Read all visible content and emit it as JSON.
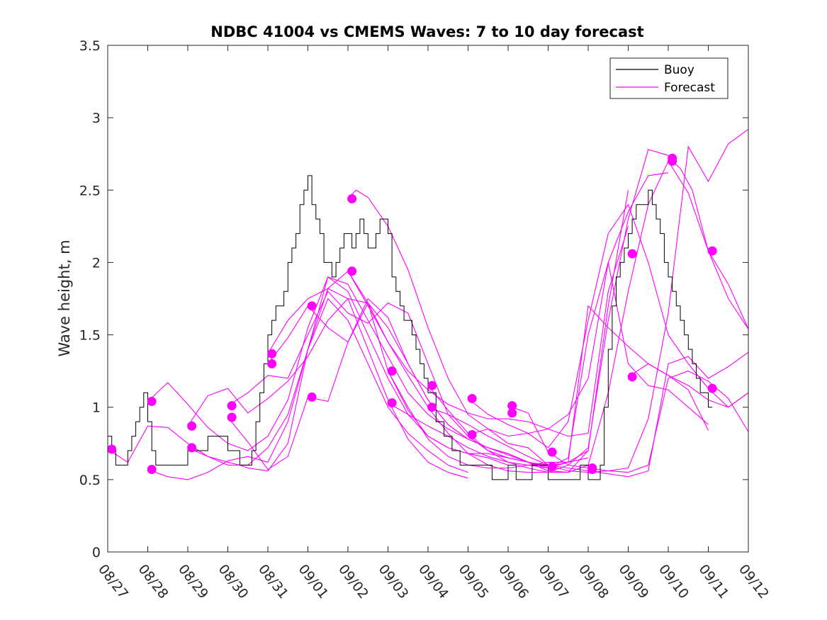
{
  "chart_data": {
    "type": "line",
    "title": "NDBC 41004 vs CMEMS Waves: 7 to 10 day forecast",
    "xlabel": "",
    "ylabel": "Wave height, m",
    "xlim": [
      0,
      16
    ],
    "ylim": [
      0,
      3.5
    ],
    "x_ticks": [
      0,
      1,
      2,
      3,
      4,
      5,
      6,
      7,
      8,
      9,
      10,
      11,
      12,
      13,
      14,
      15,
      16
    ],
    "x_tick_labels": [
      "08/27",
      "08/28",
      "08/29",
      "08/30",
      "08/31",
      "09/01",
      "09/02",
      "09/03",
      "09/04",
      "09/05",
      "09/06",
      "09/07",
      "09/08",
      "09/09",
      "09/10",
      "09/11",
      "09/12"
    ],
    "y_ticks": [
      0,
      0.5,
      1,
      1.5,
      2,
      2.5,
      3,
      3.5
    ],
    "y_tick_labels": [
      "0",
      "0.5",
      "1",
      "1.5",
      "2",
      "2.5",
      "3",
      "3.5"
    ],
    "legend": {
      "position": "top-right",
      "entries": [
        {
          "name": "Buoy",
          "color": "#000000"
        },
        {
          "name": "Forecast",
          "color": "#ff00ff"
        }
      ]
    },
    "colors": {
      "buoy": "#000000",
      "forecast": "#ff00ff",
      "axes": "#262626"
    },
    "buoy": {
      "name": "Buoy",
      "x": [
        0,
        0.1,
        0.2,
        0.4,
        0.5,
        0.6,
        0.7,
        0.8,
        0.9,
        1.0,
        1.1,
        1.2,
        1.3,
        1.5,
        2.0,
        2.5,
        3.0,
        3.3,
        3.4,
        3.5,
        3.6,
        3.7,
        3.8,
        3.9,
        4.0,
        4.1,
        4.2,
        4.3,
        4.4,
        4.5,
        4.6,
        4.7,
        4.8,
        4.9,
        5.0,
        5.1,
        5.2,
        5.3,
        5.4,
        5.5,
        5.6,
        5.7,
        5.8,
        5.9,
        6.0,
        6.1,
        6.2,
        6.3,
        6.4,
        6.5,
        6.6,
        6.7,
        6.8,
        6.9,
        7.0,
        7.1,
        7.2,
        7.3,
        7.4,
        7.5,
        7.6,
        7.7,
        7.8,
        7.9,
        8.0,
        8.2,
        8.4,
        8.6,
        8.8,
        9.0,
        9.2,
        9.4,
        9.6,
        9.8,
        10.0,
        10.2,
        10.4,
        10.6,
        10.8,
        11.0,
        11.2,
        11.4,
        11.6,
        11.8,
        12.0,
        12.1,
        12.2,
        12.3,
        12.4,
        12.5,
        12.6,
        12.7,
        12.8,
        12.9,
        13.0,
        13.1,
        13.2,
        13.3,
        13.4,
        13.5,
        13.6,
        13.7,
        13.8,
        13.9,
        14.0,
        14.1,
        14.2,
        14.3,
        14.4,
        14.5,
        14.6,
        14.7,
        14.8,
        14.9,
        15.0,
        15.1
      ],
      "values": [
        0.8,
        0.7,
        0.6,
        0.6,
        0.7,
        0.8,
        0.9,
        1.0,
        1.1,
        0.9,
        0.7,
        0.6,
        0.6,
        0.6,
        0.7,
        0.8,
        0.7,
        0.6,
        0.6,
        0.6,
        0.7,
        0.9,
        1.1,
        1.3,
        1.5,
        1.6,
        1.7,
        1.7,
        1.8,
        2.0,
        2.1,
        2.2,
        2.4,
        2.5,
        2.6,
        2.4,
        2.3,
        2.2,
        2.0,
        2.0,
        1.9,
        2.0,
        2.1,
        2.2,
        2.2,
        2.1,
        2.2,
        2.3,
        2.2,
        2.1,
        2.1,
        2.2,
        2.3,
        2.3,
        2.2,
        1.9,
        1.8,
        1.7,
        1.6,
        1.6,
        1.5,
        1.4,
        1.3,
        1.2,
        1.1,
        0.9,
        0.8,
        0.7,
        0.6,
        0.6,
        0.6,
        0.6,
        0.5,
        0.5,
        0.6,
        0.5,
        0.5,
        0.6,
        0.6,
        0.5,
        0.5,
        0.5,
        0.5,
        0.6,
        0.5,
        0.5,
        0.5,
        0.6,
        1.0,
        1.4,
        1.7,
        1.9,
        2.0,
        2.1,
        2.2,
        2.3,
        2.4,
        2.4,
        2.4,
        2.5,
        2.4,
        2.3,
        2.2,
        2.0,
        1.9,
        1.8,
        1.7,
        1.6,
        1.5,
        1.4,
        1.3,
        1.2,
        1.1,
        1.1,
        1.0,
        1.0
      ]
    },
    "forecast_series": [
      {
        "name": "Forecast 08/27",
        "x": [
          0,
          0.5,
          1,
          1.5,
          2,
          2.5,
          3,
          3.5,
          4,
          4.5,
          5,
          5.5,
          6,
          6.5,
          7,
          7.5,
          8,
          8.5,
          9
        ],
        "values": [
          0.71,
          0.62,
          0.87,
          0.86,
          0.75,
          0.66,
          0.6,
          0.6,
          0.72,
          0.95,
          1.4,
          1.75,
          1.6,
          1.3,
          1.0,
          0.82,
          0.7,
          0.6,
          0.55
        ]
      },
      {
        "name": "Forecast 08/28 a",
        "x": [
          1,
          1.5,
          2,
          2.5,
          3,
          3.5,
          4,
          4.5,
          5,
          5.5,
          6,
          6.5,
          7,
          7.5,
          8,
          8.5,
          9,
          9.5,
          10
        ],
        "values": [
          1.04,
          1.17,
          1.02,
          0.86,
          0.75,
          0.7,
          0.8,
          1.05,
          1.55,
          1.9,
          1.8,
          1.5,
          1.2,
          0.95,
          0.8,
          0.72,
          0.68,
          0.65,
          0.6
        ]
      },
      {
        "name": "Forecast 08/28 b",
        "x": [
          1,
          1.5,
          2,
          2.5,
          3,
          3.5,
          4,
          4.5,
          5,
          5.5,
          6,
          6.5,
          7,
          7.5,
          8,
          8.5,
          9
        ],
        "values": [
          0.57,
          0.52,
          0.5,
          0.55,
          0.63,
          0.66,
          0.62,
          0.9,
          1.4,
          1.82,
          1.75,
          1.4,
          1.05,
          0.78,
          0.62,
          0.55,
          0.51
        ]
      },
      {
        "name": "Forecast 08/29 a",
        "x": [
          2,
          2.5,
          3,
          3.5,
          4,
          4.5,
          5,
          5.5,
          6,
          6.5,
          7,
          7.5,
          8,
          8.5,
          9,
          9.5,
          10,
          10.5,
          11
        ],
        "values": [
          0.87,
          1.08,
          1.13,
          0.96,
          1.06,
          1.18,
          1.35,
          1.6,
          1.75,
          1.72,
          1.55,
          1.3,
          1.05,
          0.88,
          0.78,
          0.72,
          0.68,
          0.62,
          0.6
        ]
      },
      {
        "name": "Forecast 08/29 b",
        "x": [
          2,
          2.5,
          3,
          3.3,
          3.5,
          4,
          4.5,
          5,
          5.5,
          6,
          6.5,
          7,
          7.5,
          8,
          8.5,
          9,
          9.5,
          10,
          10.5,
          11
        ],
        "values": [
          0.72,
          0.66,
          0.62,
          0.6,
          0.58,
          0.56,
          0.75,
          1.4,
          1.9,
          1.85,
          1.6,
          1.35,
          1.1,
          0.95,
          0.85,
          0.78,
          0.72,
          0.68,
          0.62,
          0.56
        ]
      },
      {
        "name": "Forecast 08/30 a",
        "x": [
          3,
          3.5,
          4,
          4.5,
          5,
          5.5,
          6,
          6.5,
          7,
          7.5,
          8,
          8.5,
          9,
          9.5,
          10,
          10.5,
          11,
          11.5,
          12
        ],
        "values": [
          1.01,
          1.1,
          1.22,
          1.2,
          1.5,
          1.8,
          1.65,
          1.58,
          1.72,
          1.65,
          1.3,
          0.95,
          0.8,
          0.7,
          0.65,
          0.62,
          0.58,
          0.62,
          0.7
        ]
      },
      {
        "name": "Forecast 08/30 b",
        "x": [
          3,
          3.5,
          4,
          4.5,
          5,
          5.5,
          6,
          6.5,
          7,
          7.5,
          8,
          8.5,
          9,
          9.5,
          10,
          10.5,
          11,
          11.5,
          12
        ],
        "values": [
          0.93,
          0.76,
          0.57,
          0.66,
          1.07,
          1.04,
          1.45,
          1.75,
          1.62,
          1.3,
          1.05,
          0.88,
          0.78,
          0.72,
          0.67,
          0.62,
          0.59,
          0.62,
          0.65
        ]
      },
      {
        "name": "Forecast 08/31 a",
        "x": [
          4,
          4.5,
          5,
          5.5,
          6,
          6.5,
          7,
          7.5,
          8,
          8.5,
          9,
          9.5,
          10,
          10.5,
          11,
          11.5,
          12,
          12.5,
          13
        ],
        "values": [
          1.37,
          1.6,
          1.75,
          1.82,
          1.94,
          1.72,
          1.45,
          1.25,
          1.12,
          1.02,
          0.96,
          0.92,
          0.92,
          0.9,
          0.85,
          0.8,
          0.82,
          1.8,
          2.25
        ]
      },
      {
        "name": "Forecast 08/31 b",
        "x": [
          4,
          4.5,
          5,
          5.5,
          6,
          6.5,
          7,
          7.5,
          8,
          8.5,
          9,
          9.5,
          10,
          10.5,
          11,
          11.5,
          12,
          12.5,
          13
        ],
        "values": [
          1.3,
          1.48,
          1.7,
          1.55,
          1.45,
          1.72,
          1.25,
          0.98,
          0.8,
          0.72,
          0.68,
          0.68,
          0.65,
          0.62,
          0.56,
          0.55,
          0.7,
          1.7,
          2.5
        ]
      },
      {
        "name": "Forecast 09/02 a",
        "x": [
          6,
          6.2,
          6.5,
          7,
          7.5,
          8,
          8.5,
          9,
          9.5,
          10,
          10.5,
          11,
          11.5,
          12,
          12.5,
          13,
          13.5,
          14
        ],
        "values": [
          2.44,
          2.5,
          2.45,
          2.25,
          1.95,
          1.55,
          1.2,
          0.95,
          0.85,
          0.8,
          0.82,
          0.85,
          0.95,
          1.2,
          2.0,
          2.35,
          2.6,
          2.62
        ]
      },
      {
        "name": "Forecast 09/02 b",
        "x": [
          6,
          6.5,
          7,
          7.5,
          8,
          8.5,
          9,
          9.5,
          10,
          10.5,
          11,
          11.5,
          12,
          12.5,
          13,
          13.5,
          14
        ],
        "values": [
          1.94,
          1.7,
          1.45,
          1.22,
          1.0,
          0.82,
          0.68,
          0.6,
          0.56,
          0.55,
          0.55,
          0.6,
          0.72,
          1.6,
          2.3,
          2.78,
          2.74
        ]
      },
      {
        "name": "Forecast 09/03 a",
        "x": [
          7,
          7.5,
          8,
          8.5,
          9,
          9.5,
          10,
          10.5,
          11,
          11.5,
          12,
          12.5,
          13,
          13.5,
          14,
          14.5,
          15
        ],
        "values": [
          1.25,
          1.0,
          0.78,
          0.66,
          0.6,
          0.58,
          0.58,
          0.6,
          0.62,
          0.62,
          1.7,
          1.55,
          1.42,
          1.3,
          1.22,
          1.12,
          0.84
        ]
      },
      {
        "name": "Forecast 09/03 b",
        "x": [
          7,
          7.5,
          8,
          8.5,
          9,
          9.5,
          10,
          10.5,
          11,
          11.5,
          12,
          12.5,
          13,
          13.5,
          14,
          14.5,
          15
        ],
        "values": [
          1.03,
          0.95,
          0.87,
          0.8,
          0.72,
          0.66,
          0.62,
          0.6,
          0.58,
          0.65,
          1.5,
          2.0,
          1.3,
          1.15,
          1.12,
          1.0,
          0.88
        ]
      },
      {
        "name": "Forecast 09/04 a",
        "x": [
          8,
          8.5,
          9,
          9.5,
          10,
          10.5,
          11,
          11.5,
          12,
          12.5,
          13,
          13.5,
          14,
          14.5,
          15,
          15.5,
          16
        ],
        "values": [
          1.15,
          0.98,
          0.82,
          0.7,
          0.62,
          0.58,
          0.55,
          0.55,
          0.6,
          1.1,
          1.8,
          2.4,
          2.7,
          2.48,
          2.08,
          1.85,
          1.54
        ]
      },
      {
        "name": "Forecast 09/04 b",
        "x": [
          8,
          8.5,
          9,
          9.5,
          10,
          10.5,
          11,
          11.5,
          12,
          12.5,
          13,
          13.5,
          14,
          14.5,
          15,
          15.5,
          16
        ],
        "values": [
          1.0,
          0.95,
          0.88,
          0.8,
          0.73,
          0.66,
          0.6,
          0.56,
          0.55,
          0.56,
          0.58,
          0.92,
          1.65,
          2.8,
          2.56,
          2.82,
          2.92
        ]
      },
      {
        "name": "Forecast 09/05 a",
        "x": [
          9,
          9.5,
          10,
          10.5,
          11,
          11.5,
          12,
          12.5,
          13,
          13.5,
          14,
          14.5,
          15,
          15.5,
          16
        ],
        "values": [
          1.06,
          0.95,
          0.88,
          0.82,
          0.72,
          0.9,
          1.6,
          2.2,
          2.4,
          2.0,
          1.5,
          1.3,
          1.13,
          1.0,
          1.1
        ]
      },
      {
        "name": "Forecast 09/05 b",
        "x": [
          9,
          9.5,
          10,
          10.5,
          11,
          11.5,
          12,
          12.5,
          13,
          13.5,
          14,
          14.5,
          15,
          15.5,
          16
        ],
        "values": [
          0.81,
          0.85,
          0.75,
          0.72,
          0.6,
          0.58,
          0.56,
          0.54,
          0.52,
          0.56,
          1.3,
          1.35,
          1.2,
          1.28,
          1.38
        ]
      },
      {
        "name": "Forecast 09/06",
        "x": [
          10,
          10.5,
          11,
          11.5,
          12,
          12.5,
          13,
          13.5,
          14,
          14.5,
          15,
          15.5,
          16
        ],
        "values": [
          1.01,
          0.96,
          0.69,
          0.6,
          0.58,
          0.56,
          0.55,
          0.6,
          1.2,
          1.25,
          1.18,
          1.06,
          0.83
        ]
      },
      {
        "name": "Forecast 09/09",
        "x": [
          13,
          13.5,
          14,
          14.5,
          15,
          15.5,
          16
        ],
        "values": [
          1.21,
          1.3,
          1.22,
          1.15,
          1.05,
          1.0,
          1.1
        ]
      },
      {
        "name": "Forecast 09/10",
        "x": [
          14,
          14.3,
          14.6,
          15,
          15.5,
          16
        ],
        "values": [
          2.72,
          2.65,
          2.5,
          2.08,
          1.75,
          1.54
        ]
      }
    ],
    "forecast_markers": [
      {
        "x": 0.1,
        "y": 0.71
      },
      {
        "x": 1.1,
        "y": 1.04
      },
      {
        "x": 1.1,
        "y": 0.57
      },
      {
        "x": 2.1,
        "y": 0.87
      },
      {
        "x": 2.1,
        "y": 0.72
      },
      {
        "x": 3.1,
        "y": 1.01
      },
      {
        "x": 3.1,
        "y": 0.93
      },
      {
        "x": 4.1,
        "y": 1.37
      },
      {
        "x": 4.1,
        "y": 1.3
      },
      {
        "x": 5.1,
        "y": 1.7
      },
      {
        "x": 5.1,
        "y": 1.07
      },
      {
        "x": 6.1,
        "y": 2.44
      },
      {
        "x": 6.1,
        "y": 1.94
      },
      {
        "x": 7.1,
        "y": 1.25
      },
      {
        "x": 7.1,
        "y": 1.03
      },
      {
        "x": 8.1,
        "y": 1.15
      },
      {
        "x": 8.1,
        "y": 1.0
      },
      {
        "x": 9.1,
        "y": 1.06
      },
      {
        "x": 9.1,
        "y": 0.81
      },
      {
        "x": 10.1,
        "y": 1.01
      },
      {
        "x": 10.1,
        "y": 0.96
      },
      {
        "x": 11.1,
        "y": 0.69
      },
      {
        "x": 11.1,
        "y": 0.59
      },
      {
        "x": 12.1,
        "y": 0.58
      },
      {
        "x": 12.1,
        "y": 0.57
      },
      {
        "x": 13.1,
        "y": 2.06
      },
      {
        "x": 13.1,
        "y": 1.21
      },
      {
        "x": 14.1,
        "y": 2.72
      },
      {
        "x": 14.1,
        "y": 2.7
      },
      {
        "x": 15.1,
        "y": 2.08
      },
      {
        "x": 15.1,
        "y": 1.13
      }
    ]
  }
}
